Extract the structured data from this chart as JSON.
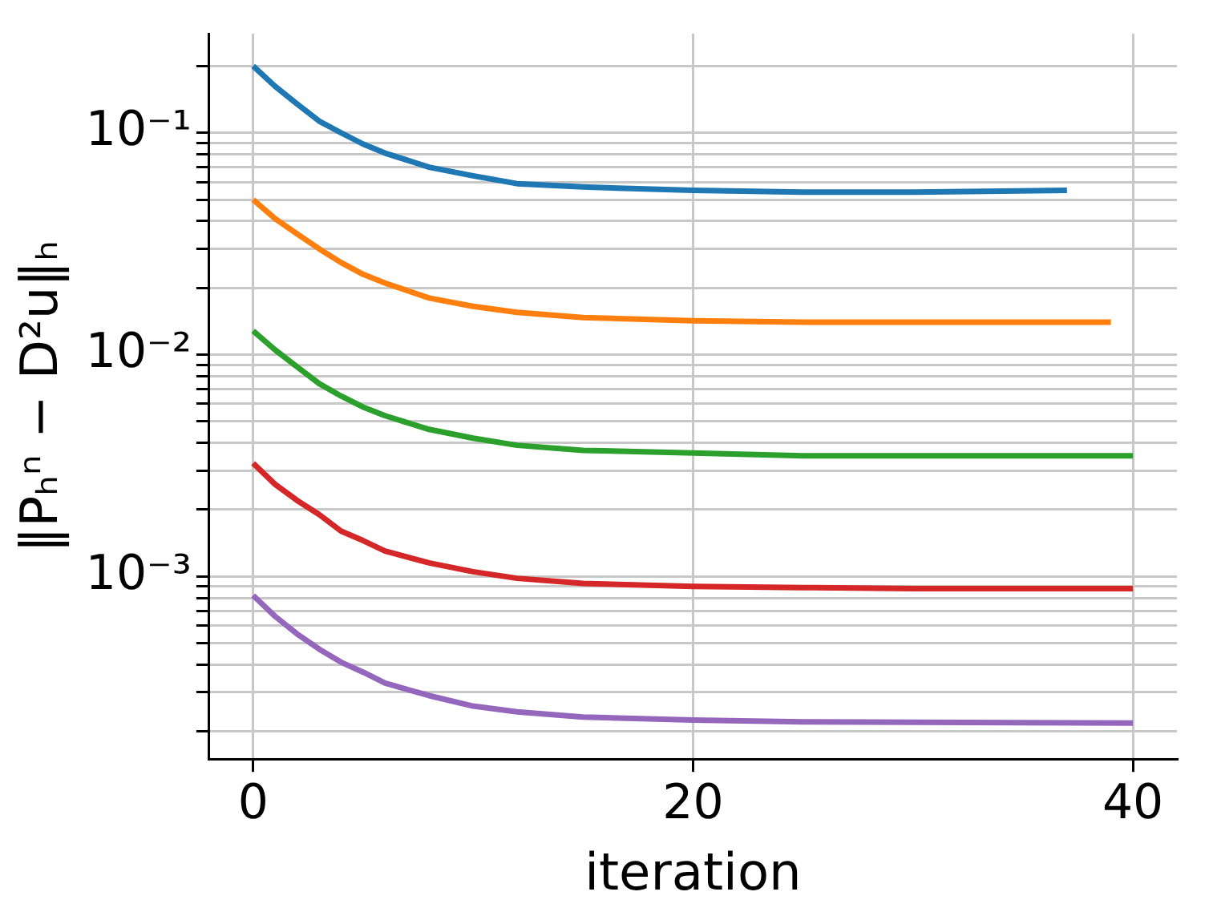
{
  "chart_data": {
    "type": "line",
    "xlabel": "iteration",
    "ylabel": "‖Pₕⁿ − D²u‖ₕ",
    "log": "y",
    "grid": true,
    "marker": "none",
    "line_style": "solid",
    "xlim": [
      -2,
      42
    ],
    "xticks": [
      0,
      20,
      40
    ],
    "ylim": [
      0.00015,
      0.28
    ],
    "yticks": [
      {
        "value": 0.0002,
        "label": null
      },
      {
        "value": 0.0003,
        "label": null
      },
      {
        "value": 0.0004,
        "label": null
      },
      {
        "value": 0.0005,
        "label": null
      },
      {
        "value": 0.0006,
        "label": null
      },
      {
        "value": 0.0007,
        "label": null
      },
      {
        "value": 0.0008,
        "label": null
      },
      {
        "value": 0.0009,
        "label": null
      },
      {
        "value": 0.001,
        "label": "10⁻³"
      },
      {
        "value": 0.002,
        "label": null
      },
      {
        "value": 0.003,
        "label": null
      },
      {
        "value": 0.004,
        "label": null
      },
      {
        "value": 0.005,
        "label": null
      },
      {
        "value": 0.006,
        "label": null
      },
      {
        "value": 0.007,
        "label": null
      },
      {
        "value": 0.008,
        "label": null
      },
      {
        "value": 0.009,
        "label": null
      },
      {
        "value": 0.01,
        "label": "10⁻²"
      },
      {
        "value": 0.02,
        "label": null
      },
      {
        "value": 0.03,
        "label": null
      },
      {
        "value": 0.04,
        "label": null
      },
      {
        "value": 0.05,
        "label": null
      },
      {
        "value": 0.06,
        "label": null
      },
      {
        "value": 0.07,
        "label": null
      },
      {
        "value": 0.08,
        "label": null
      },
      {
        "value": 0.09,
        "label": null
      },
      {
        "value": 0.1,
        "label": "10⁻¹"
      },
      {
        "value": 0.2,
        "label": null
      }
    ],
    "series": [
      {
        "color": "#1f77b4",
        "x": [
          0,
          1,
          2,
          3,
          4,
          5,
          6,
          8,
          10,
          12,
          15,
          20,
          25,
          30,
          37
        ],
        "values": [
          0.2,
          0.162,
          0.135,
          0.113,
          0.1,
          0.089,
          0.081,
          0.07,
          0.064,
          0.059,
          0.057,
          0.055,
          0.054,
          0.054,
          0.055
        ]
      },
      {
        "color": "#ff7f0e",
        "x": [
          0,
          1,
          2,
          3,
          4,
          5,
          6,
          8,
          10,
          12,
          15,
          20,
          25,
          30,
          39
        ],
        "values": [
          0.05,
          0.041,
          0.035,
          0.03,
          0.026,
          0.023,
          0.021,
          0.018,
          0.0165,
          0.0155,
          0.0147,
          0.0142,
          0.014,
          0.014,
          0.014
        ]
      },
      {
        "color": "#2ca02c",
        "x": [
          0,
          1,
          2,
          3,
          4,
          5,
          6,
          8,
          10,
          12,
          15,
          20,
          25,
          30,
          40
        ],
        "values": [
          0.0128,
          0.0105,
          0.0088,
          0.0074,
          0.0065,
          0.0058,
          0.0053,
          0.0046,
          0.0042,
          0.0039,
          0.0037,
          0.0036,
          0.0035,
          0.0035,
          0.0035
        ]
      },
      {
        "color": "#d62728",
        "x": [
          0,
          1,
          2,
          3,
          4,
          5,
          6,
          8,
          10,
          12,
          15,
          20,
          25,
          30,
          40
        ],
        "values": [
          0.00324,
          0.0026,
          0.0022,
          0.0019,
          0.0016,
          0.00145,
          0.0013,
          0.00115,
          0.00105,
          0.00098,
          0.00093,
          0.0009,
          0.00089,
          0.00088,
          0.00088
        ]
      },
      {
        "color": "#9467bd",
        "x": [
          0,
          1,
          2,
          3,
          4,
          5,
          6,
          8,
          10,
          12,
          15,
          20,
          25,
          30,
          40
        ],
        "values": [
          0.00082,
          0.00066,
          0.00055,
          0.00047,
          0.00041,
          0.00037,
          0.00033,
          0.00029,
          0.00026,
          0.000245,
          0.000232,
          0.000225,
          0.000221,
          0.00022,
          0.000218
        ]
      }
    ]
  }
}
